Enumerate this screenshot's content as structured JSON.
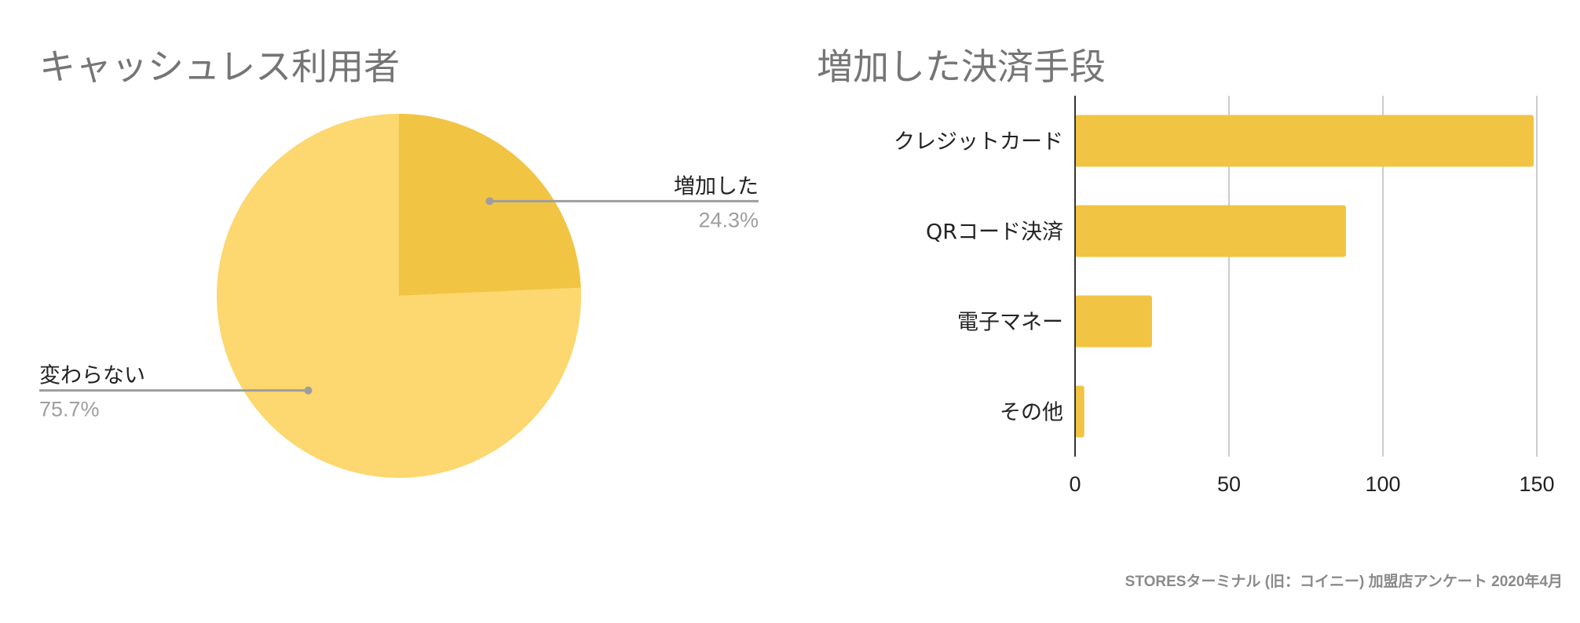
{
  "chart_data": [
    {
      "type": "pie",
      "title": "キャッシュレス利用者",
      "slices": [
        {
          "label": "増加した",
          "value": 24.3,
          "value_label": "24.3%",
          "color": "#f2c443"
        },
        {
          "label": "変わらない",
          "value": 75.7,
          "value_label": "75.7%",
          "color": "#fdd76f"
        }
      ],
      "legend": "labels-outside"
    },
    {
      "type": "bar",
      "orientation": "horizontal",
      "title": "増加した決済手段",
      "categories": [
        "クレジットカード",
        "QRコード決済",
        "電子マネー",
        "その他"
      ],
      "values": [
        149,
        88,
        25,
        3
      ],
      "xlim": [
        0,
        150
      ],
      "xticks": [
        0,
        50,
        100,
        150
      ],
      "xtick_labels": [
        "0",
        "50",
        "100",
        "150"
      ],
      "grid": true,
      "color": "#f2c443"
    }
  ],
  "source_note": "STORESターミナル (旧：コイニー) 加盟店アンケート 2020年4月"
}
